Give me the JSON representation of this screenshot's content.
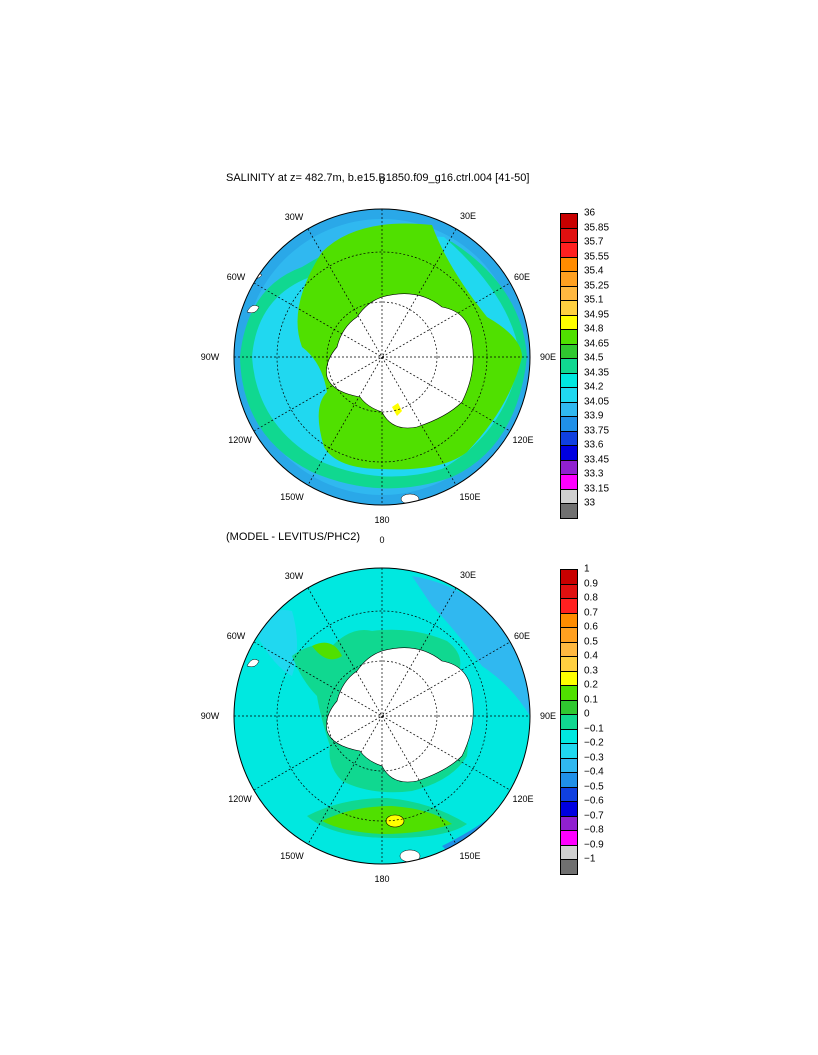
{
  "panel1": {
    "title": "SALINITY at z= 482.7m, b.e15.B1850.f09_g16.ctrl.004 [41-50]",
    "colorbar_labels": [
      "36",
      "35.85",
      "35.7",
      "35.55",
      "35.4",
      "35.25",
      "35.1",
      "34.95",
      "34.8",
      "34.65",
      "34.5",
      "34.35",
      "34.2",
      "34.05",
      "33.9",
      "33.75",
      "33.6",
      "33.45",
      "33.3",
      "33.15",
      "33"
    ]
  },
  "panel2": {
    "title": "(MODEL - LEVITUS/PHC2)",
    "colorbar_labels": [
      "1",
      "0.9",
      "0.8",
      "0.7",
      "0.6",
      "0.5",
      "0.4",
      "0.3",
      "0.2",
      "0.1",
      "0",
      "−0.1",
      "−0.2",
      "−0.3",
      "−0.4",
      "−0.5",
      "−0.6",
      "−0.7",
      "−0.8",
      "−0.9",
      "−1"
    ]
  },
  "longitude_labels": [
    "0",
    "30E",
    "60E",
    "90E",
    "120E",
    "150E",
    "180",
    "150W",
    "120W",
    "90W",
    "60W",
    "30W"
  ],
  "colorbar_colors": [
    "#c80000",
    "#e01010",
    "#ff2020",
    "#ff8c00",
    "#ffa020",
    "#ffb840",
    "#ffd040",
    "#ffff00",
    "#50e000",
    "#30c830",
    "#10d890",
    "#00e8e0",
    "#20d8f0",
    "#30b8f0",
    "#2090e8",
    "#1040e0",
    "#0000e0",
    "#9020d0",
    "#ff00ff",
    "#d0d0d0",
    "#707070"
  ]
}
